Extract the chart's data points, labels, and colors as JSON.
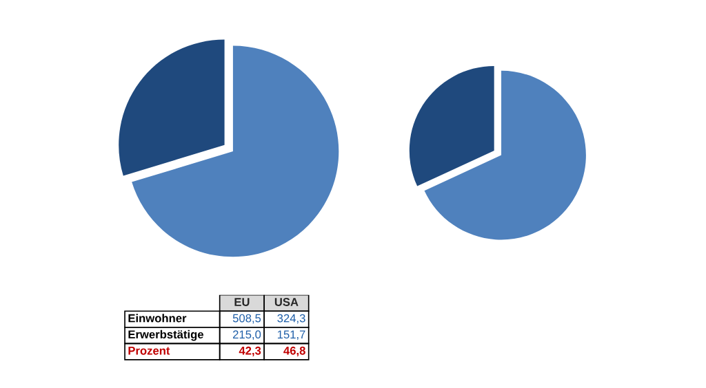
{
  "chart_data": [
    {
      "type": "pie",
      "categories": [
        null,
        null
      ],
      "values": [
        70.3,
        29.7
      ],
      "colors": [
        "#4f81bd",
        "#1f497d"
      ]
    },
    {
      "type": "pie",
      "categories": [
        null,
        null
      ],
      "values": [
        68.1,
        31.9
      ],
      "colors": [
        "#4f81bd",
        "#1f497d"
      ]
    },
    {
      "type": "other",
      "annotations": [
        "EU",
        "USA",
        "Einwohner",
        "508,5",
        "324,3",
        "Erwerbstätige",
        "215,0",
        "151,7",
        "Prozent",
        "42,3",
        "46,8"
      ]
    }
  ]
}
